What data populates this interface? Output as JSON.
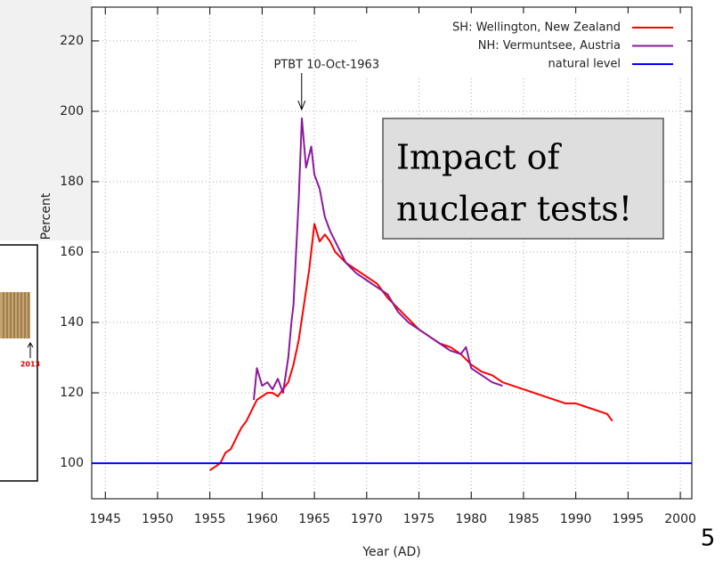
{
  "chart_data": {
    "type": "line",
    "x_label": "Year (AD)",
    "y_label": "Percent",
    "xlim": [
      1943.7,
      2001.1
    ],
    "ylim": [
      89.9,
      229.6
    ],
    "xticks": [
      1945,
      1950,
      1955,
      1960,
      1965,
      1970,
      1975,
      1980,
      1985,
      1990,
      1995,
      2000
    ],
    "yticks": [
      100,
      120,
      140,
      160,
      180,
      200,
      220
    ],
    "grid": true,
    "legend": "top-right",
    "annotation": {
      "text": "PTBT 10-Oct-1963",
      "x": 1963.78
    },
    "series": [
      {
        "name": "SH: Wellington, New Zealand",
        "color": "#ff0000",
        "x": [
          1955,
          1955.5,
          1956,
          1956.5,
          1957,
          1957.5,
          1958,
          1958.5,
          1959,
          1959.5,
          1960,
          1960.5,
          1961,
          1961.5,
          1962,
          1962.5,
          1963,
          1963.5,
          1964,
          1964.5,
          1965,
          1965.5,
          1966,
          1966.5,
          1967,
          1968,
          1969,
          1970,
          1971,
          1972,
          1973,
          1974,
          1975,
          1976,
          1977,
          1978,
          1979,
          1980,
          1981,
          1982,
          1983,
          1984,
          1985,
          1986,
          1987,
          1988,
          1989,
          1990,
          1991,
          1992,
          1993,
          1993.5
        ],
        "values": [
          98,
          99,
          100,
          103,
          104,
          107,
          110,
          112,
          115,
          118,
          119,
          120,
          120,
          119,
          121,
          123,
          128,
          135,
          145,
          155,
          168,
          163,
          165,
          163,
          160,
          157,
          155,
          153,
          151,
          147,
          144,
          141,
          138,
          136,
          134,
          133,
          131,
          128,
          126,
          125,
          123,
          122,
          121,
          120,
          119,
          118,
          117,
          117,
          116,
          115,
          114,
          112
        ]
      },
      {
        "name": "NH: Vermuntsee, Austria",
        "color": "#8b1a9b",
        "x": [
          1959.2,
          1959.5,
          1960,
          1960.5,
          1961,
          1961.5,
          1962,
          1962.5,
          1962.8,
          1963,
          1963.5,
          1963.8,
          1964.2,
          1964.7,
          1965,
          1965.5,
          1966,
          1966.5,
          1967,
          1968,
          1969,
          1970,
          1971,
          1972,
          1973,
          1974,
          1975,
          1976,
          1977,
          1978,
          1979,
          1979.5,
          1980,
          1981,
          1982,
          1983
        ],
        "values": [
          118,
          127,
          122,
          123,
          121,
          124,
          120,
          130,
          140,
          145,
          175,
          198,
          184,
          190,
          182,
          178,
          170,
          166,
          163,
          157,
          154,
          152,
          150,
          148,
          143,
          140,
          138,
          136,
          134,
          132,
          131,
          133,
          127,
          125,
          123,
          122
        ]
      },
      {
        "name": "natural level",
        "color": "#0000ff",
        "x": [
          1943.7,
          2001.1
        ],
        "values": [
          100,
          100
        ]
      }
    ]
  },
  "slide": {
    "callout": [
      "Impact of",
      "nuclear tests!"
    ],
    "page_number": "5",
    "inset_label": "2013"
  }
}
